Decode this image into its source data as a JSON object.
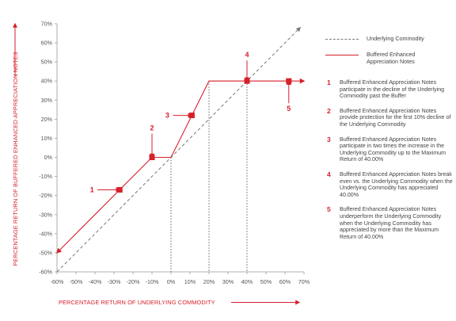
{
  "chart_data": {
    "type": "line",
    "xlabel": "PERCENTAGE RETURN OF UNDERLYING COMMODITY",
    "ylabel": "PERCENTAGE RETURN OF BUFFERED ENHANCED APPRECIATION NOTES",
    "xlim": [
      -60,
      70
    ],
    "ylim": [
      -60,
      70
    ],
    "x_ticks": [
      "-60%",
      "-50%",
      "-40%",
      "-30%",
      "-20%",
      "-10%",
      "0%",
      "10%",
      "20%",
      "30%",
      "40%",
      "50%",
      "60%",
      "70%"
    ],
    "y_ticks": [
      "70%",
      "60%",
      "50%",
      "40%",
      "30%",
      "20%",
      "10%",
      "0%",
      "-10%",
      "-20%",
      "-30%",
      "-40%",
      "-50%",
      "-60%"
    ],
    "grid": false,
    "legend_position": "top-right",
    "series": [
      {
        "name": "Underlying Commodity",
        "color": "#777777",
        "style": "dashed",
        "x": [
          -60,
          68
        ],
        "y": [
          -60,
          68
        ]
      },
      {
        "name": "Buffered Enhanced Appreciation Notes",
        "color": "#d6202b",
        "style": "solid",
        "x": [
          -60,
          -10,
          0,
          20,
          70
        ],
        "y": [
          -50,
          0,
          0,
          40,
          40
        ]
      }
    ],
    "markers": [
      {
        "label": "1",
        "x": -27,
        "y": -17
      },
      {
        "label": "2",
        "x": -10,
        "y": 0
      },
      {
        "label": "3",
        "x": 11,
        "y": 22
      },
      {
        "label": "4",
        "x": 40,
        "y": 40
      },
      {
        "label": "5",
        "x": 62,
        "y": 40
      }
    ],
    "vertical_guides_x": [
      0,
      20,
      40
    ]
  },
  "legend": {
    "items": [
      {
        "label": "Underlying Commodity",
        "color": "#777777",
        "style": "dashed"
      },
      {
        "label": "Buffered Enhanced Appreciation Notes",
        "color": "#d6202b",
        "style": "solid"
      }
    ]
  },
  "notes": [
    {
      "num": "1",
      "text": "Buffered Enhanced Appreciation Notes participate in the decline of the Underlying Commodity past the Buffer"
    },
    {
      "num": "2",
      "text": "Buffered Enhanced Appreciation Notes provide protection for the first 10% decline of the Underlying Commodity"
    },
    {
      "num": "3",
      "text": "Buffered Enhanced Appreciation Notes participate in two times the increase in the Underlying Commodity up to the Maximum Return of 40.00%"
    },
    {
      "num": "4",
      "text": "Buffered Enhanced Appreciation Notes break even vs. the Underlying Commodity when the Underlying Commodity has appreciated 40.00%"
    },
    {
      "num": "5",
      "text": "Buffered Enhanced Appreciation Notes underperform the Underlying Commodity when the Underlying Commodity has appreciated by more than the Maximum Return of 40.00%"
    }
  ]
}
